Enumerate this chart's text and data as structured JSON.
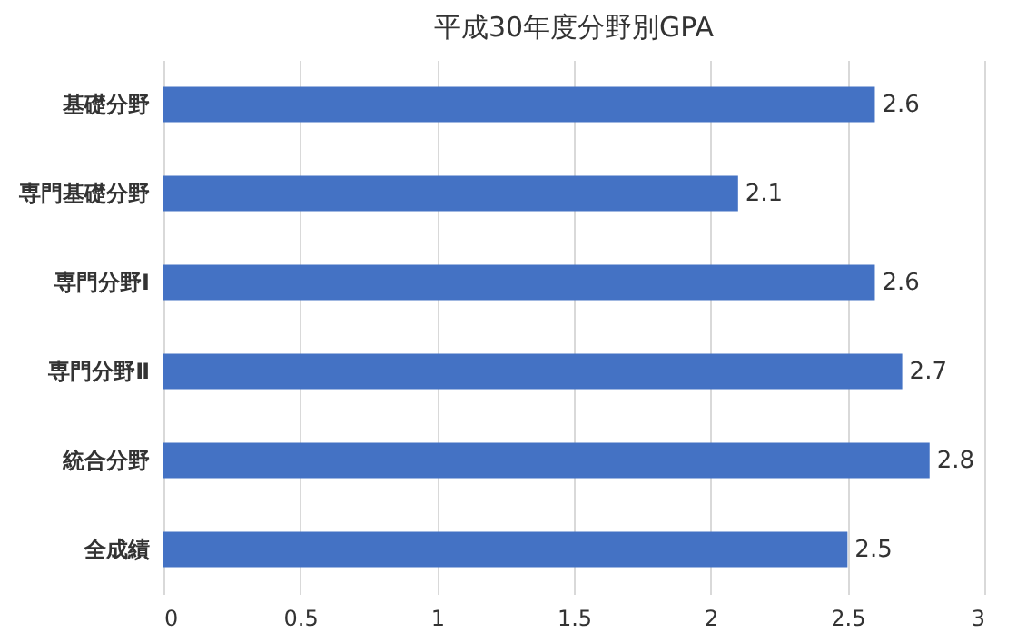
{
  "chart_data": {
    "type": "bar",
    "orientation": "horizontal",
    "title": "平成30年度分野別GPA",
    "categories": [
      "基礎分野",
      "専門基礎分野",
      "専門分野Ⅰ",
      "専門分野Ⅱ",
      "統合分野",
      "全成績"
    ],
    "values": [
      2.6,
      2.1,
      2.6,
      2.7,
      2.8,
      2.5
    ],
    "color": "#4472c4",
    "xlim": [
      0,
      3
    ],
    "xticks": [
      0,
      0.5,
      1,
      1.5,
      2,
      2.5,
      3
    ],
    "grid": "x",
    "data_labels": true
  }
}
